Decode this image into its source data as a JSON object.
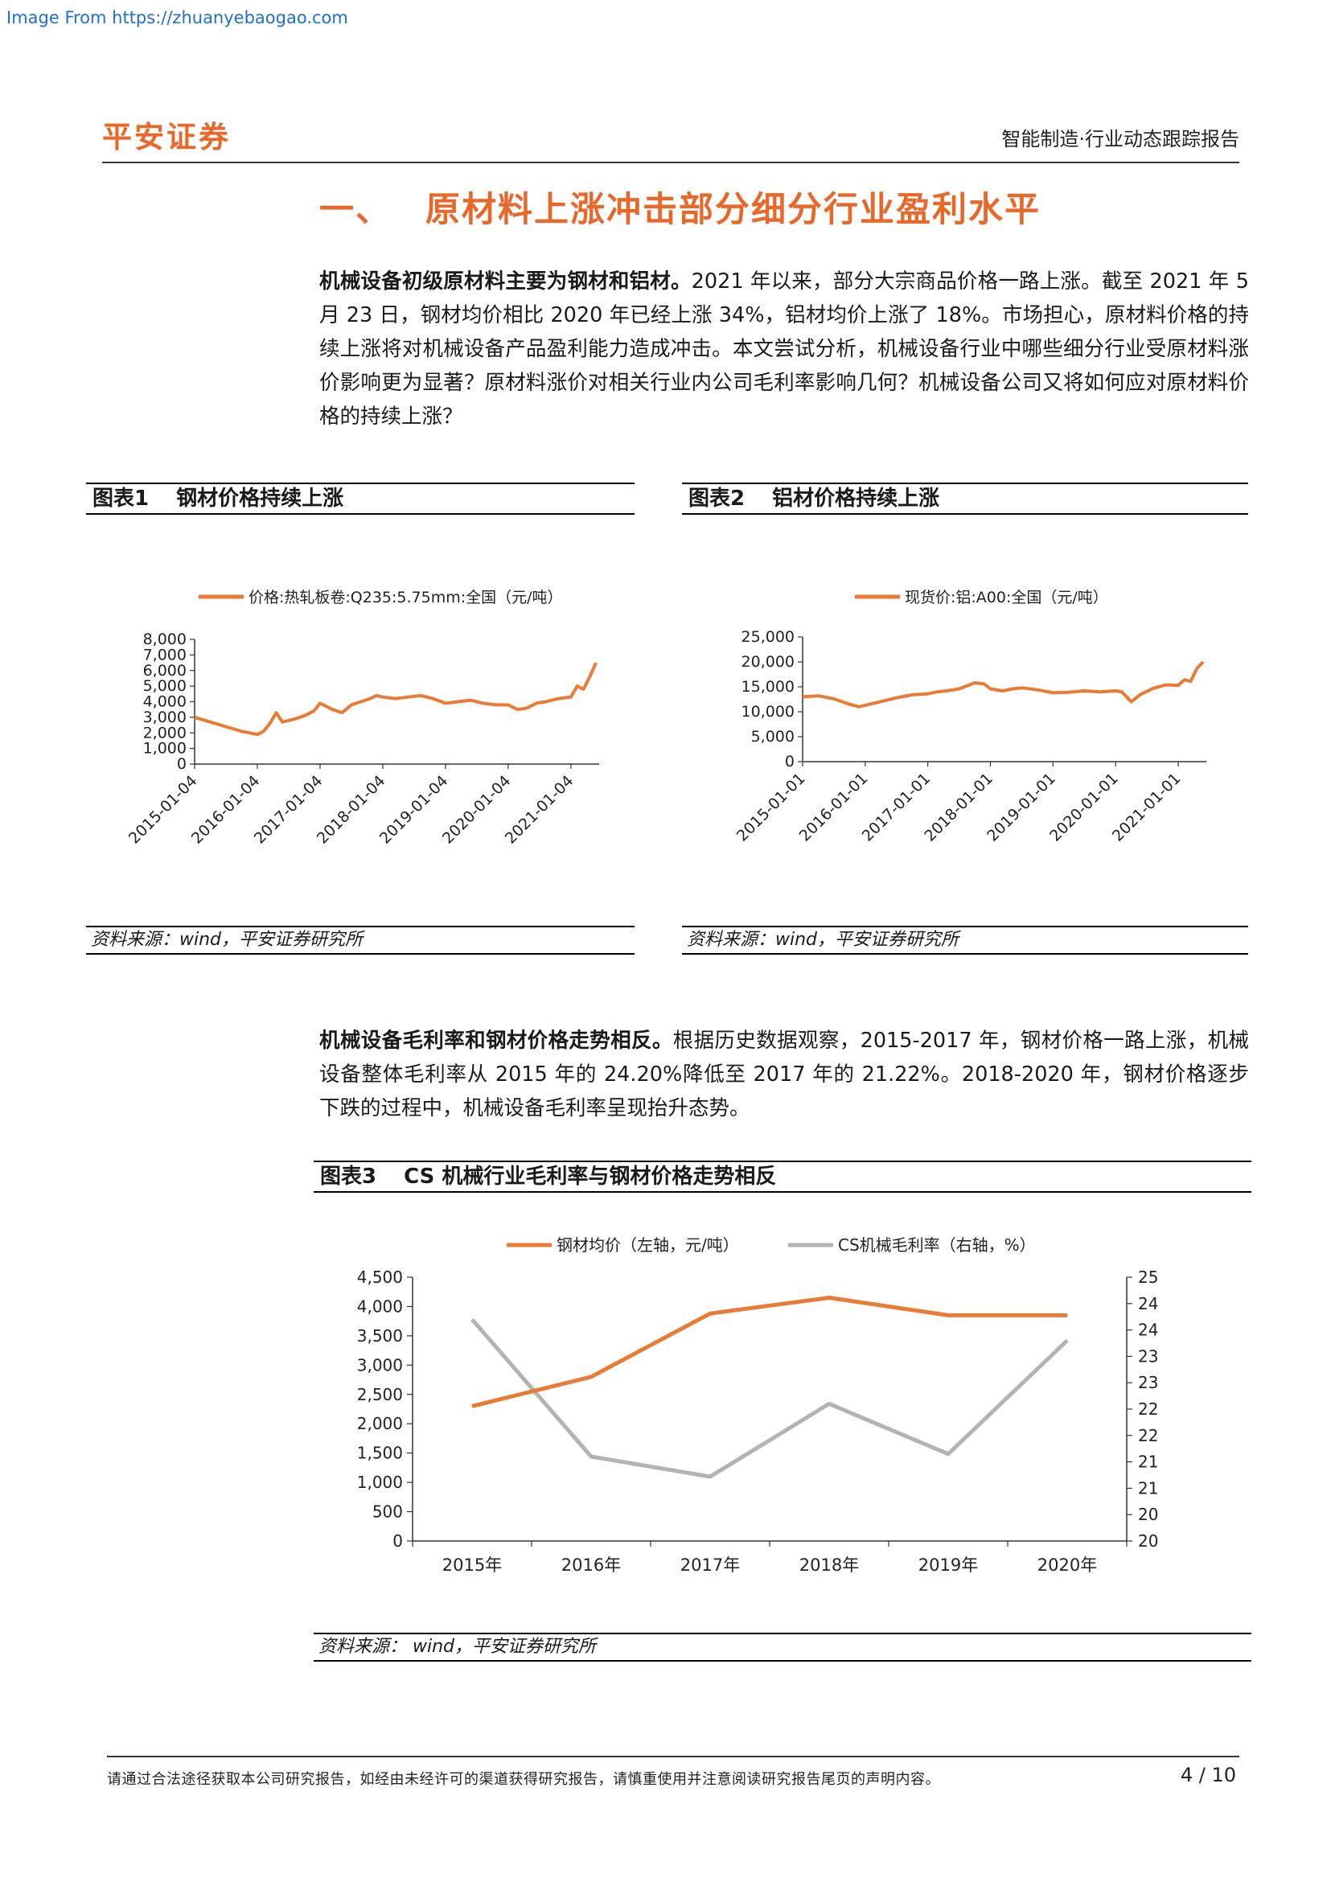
{
  "watermark": "Image From https://zhuanyebaogao.com",
  "header": {
    "logo": "平安证券",
    "report_type": "智能制造·行业动态跟踪报告"
  },
  "section": {
    "number": "一、",
    "title": "原材料上涨冲击部分细分行业盈利水平"
  },
  "para1": {
    "lead": "机械设备初级原材料主要为钢材和铝材。",
    "body": "2021 年以来，部分大宗商品价格一路上涨。截至 2021 年 5 月 23 日，钢材均价相比 2020 年已经上涨 34%，铝材均价上涨了 18%。市场担心，原材料价格的持续上涨将对机械设备产品盈利能力造成冲击。本文尝试分析，机械设备行业中哪些细分行业受原材料涨价影响更为显著？原材料涨价对相关行业内公司毛利率影响几何？机械设备公司又将如何应对原材料价格的持续上涨？"
  },
  "para2": {
    "lead": "机械设备毛利率和钢材价格走势相反。",
    "body": "根据历史数据观察，2015-2017 年，钢材价格一路上涨，机械设备整体毛利率从 2015 年的 24.20%降低至 2017 年的 21.22%。2018-2020 年，钢材价格逐步下跌的过程中，机械设备毛利率呈现抬升态势。"
  },
  "fig1": {
    "label": "图表1",
    "title": "钢材价格持续上涨",
    "source": "资料来源：wind，平安证券研究所"
  },
  "fig2": {
    "label": "图表2",
    "title": "铝材价格持续上涨",
    "source": "资料来源：wind，平安证券研究所"
  },
  "fig3": {
    "label": "图表3",
    "title": "CS 机械行业毛利率与钢材价格走势相反",
    "source": "资料来源： wind，平安证券研究所"
  },
  "chart_data": [
    {
      "type": "line",
      "legend": [
        "价格:热轧板卷:Q235:5.75mm:全国（元/吨）"
      ],
      "ylim": [
        0,
        8000
      ],
      "yticks": [
        "8,000",
        "7,000",
        "6,000",
        "5,000",
        "4,000",
        "3,000",
        "2,000",
        "1,000",
        "0"
      ],
      "xticks": [
        "2015-01-04",
        "2016-01-04",
        "2017-01-04",
        "2018-01-04",
        "2019-01-04",
        "2020-01-04",
        "2021-01-04"
      ],
      "series": [
        {
          "name": "价格:热轧板卷:Q235:5.75mm:全国（元/吨）",
          "color": "#e97b34",
          "x": [
            2015.0,
            2015.25,
            2015.5,
            2015.75,
            2016.0,
            2016.1,
            2016.2,
            2016.3,
            2016.4,
            2016.5,
            2016.6,
            2016.75,
            2016.9,
            2017.0,
            2017.1,
            2017.2,
            2017.35,
            2017.5,
            2017.65,
            2017.8,
            2017.9,
            2018.0,
            2018.2,
            2018.4,
            2018.6,
            2018.8,
            2019.0,
            2019.2,
            2019.4,
            2019.6,
            2019.8,
            2020.0,
            2020.15,
            2020.3,
            2020.45,
            2020.6,
            2020.8,
            2021.0,
            2021.1,
            2021.2,
            2021.3,
            2021.4
          ],
          "values": [
            3000,
            2700,
            2400,
            2100,
            1900,
            2100,
            2600,
            3300,
            2700,
            2800,
            2900,
            3100,
            3400,
            3900,
            3700,
            3500,
            3300,
            3800,
            4000,
            4200,
            4400,
            4300,
            4200,
            4300,
            4400,
            4200,
            3900,
            4000,
            4100,
            3900,
            3800,
            3800,
            3500,
            3600,
            3900,
            4000,
            4200,
            4300,
            5000,
            4800,
            5600,
            6500
          ]
        }
      ]
    },
    {
      "type": "line",
      "legend": [
        "现货价:铝:A00:全国（元/吨）"
      ],
      "ylim": [
        0,
        25000
      ],
      "yticks": [
        "25,000",
        "20,000",
        "15,000",
        "10,000",
        "5,000",
        "0"
      ],
      "xticks": [
        "2015-01-01",
        "2016-01-01",
        "2017-01-01",
        "2018-01-01",
        "2019-01-01",
        "2020-01-01",
        "2021-01-01"
      ],
      "series": [
        {
          "name": "现货价:铝:A00:全国（元/吨）",
          "color": "#e97b34",
          "x": [
            2015.0,
            2015.25,
            2015.5,
            2015.75,
            2015.9,
            2016.1,
            2016.3,
            2016.5,
            2016.75,
            2017.0,
            2017.15,
            2017.3,
            2017.5,
            2017.75,
            2017.9,
            2018.0,
            2018.2,
            2018.35,
            2018.5,
            2018.75,
            2019.0,
            2019.25,
            2019.5,
            2019.75,
            2020.0,
            2020.1,
            2020.25,
            2020.4,
            2020.6,
            2020.8,
            2021.0,
            2021.1,
            2021.2,
            2021.3,
            2021.4
          ],
          "values": [
            13000,
            13200,
            12600,
            11500,
            11000,
            11600,
            12200,
            12800,
            13400,
            13600,
            14000,
            14200,
            14600,
            15800,
            15600,
            14600,
            14200,
            14600,
            14800,
            14400,
            13800,
            13900,
            14200,
            14000,
            14200,
            14000,
            12000,
            13500,
            14700,
            15400,
            15300,
            16400,
            16100,
            18700,
            20000
          ]
        }
      ]
    },
    {
      "type": "line",
      "legend": [
        "钢材均价（左轴，元/吨）",
        "CS机械毛利率（右轴，%）"
      ],
      "categories": [
        "2015年",
        "2016年",
        "2017年",
        "2018年",
        "2019年",
        "2020年"
      ],
      "ylim_left": [
        0,
        4500
      ],
      "ylim_right": [
        20,
        25
      ],
      "yticks_left": [
        "4,500",
        "4,000",
        "3,500",
        "3,000",
        "2,500",
        "2,000",
        "1,500",
        "1,000",
        "500",
        "0"
      ],
      "yticks_right": [
        "25",
        "24",
        "24",
        "23",
        "23",
        "22",
        "22",
        "21",
        "21",
        "20",
        "20"
      ],
      "series": [
        {
          "name": "钢材均价（左轴，元/吨）",
          "axis": "left",
          "color": "#e97b34",
          "values": [
            2300,
            2800,
            3880,
            4150,
            3850,
            3850
          ]
        },
        {
          "name": "CS机械毛利率（右轴，%）",
          "axis": "right",
          "color": "#b3b3b3",
          "values": [
            24.2,
            21.6,
            21.22,
            22.6,
            21.65,
            23.8
          ]
        }
      ]
    }
  ],
  "footer": {
    "disclaimer": "请通过合法途径获取本公司研究报告，如经由未经许可的渠道获得研究报告，请慎重使用并注意阅读研究报告尾页的声明内容。",
    "page": "4 / 10"
  }
}
